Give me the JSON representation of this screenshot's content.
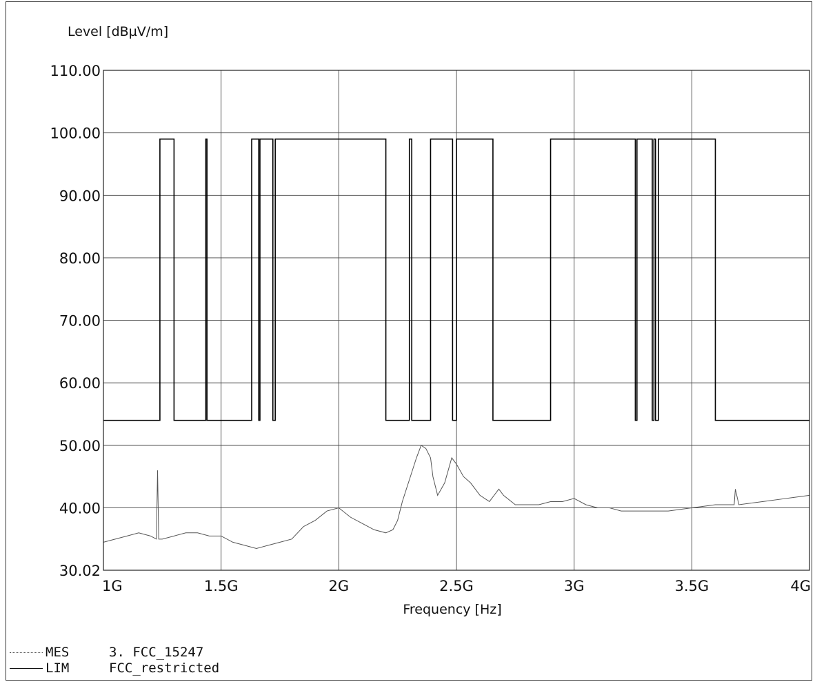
{
  "chart_data": {
    "type": "line",
    "ylabel": "Level [dBµV/m]",
    "xlabel": "Frequency [Hz]",
    "xlim": [
      1000000000,
      4000000000
    ],
    "ylim": [
      30.02,
      110.0
    ],
    "x_ticks": [
      {
        "value": 1000000000,
        "label": "1G"
      },
      {
        "value": 1500000000,
        "label": "1.5G"
      },
      {
        "value": 2000000000,
        "label": "2G"
      },
      {
        "value": 2500000000,
        "label": "2.5G"
      },
      {
        "value": 3000000000,
        "label": "3G"
      },
      {
        "value": 3500000000,
        "label": "3.5G"
      },
      {
        "value": 4000000000,
        "label": "4G"
      }
    ],
    "y_ticks": [
      {
        "value": 30.02,
        "label": "30.02"
      },
      {
        "value": 40,
        "label": "40.00"
      },
      {
        "value": 50,
        "label": "50.00"
      },
      {
        "value": 60,
        "label": "60.00"
      },
      {
        "value": 70,
        "label": "70.00"
      },
      {
        "value": 80,
        "label": "80.00"
      },
      {
        "value": 90,
        "label": "90.00"
      },
      {
        "value": 100,
        "label": "100.00"
      },
      {
        "value": 110,
        "label": "110.00"
      }
    ],
    "grid": true,
    "series": [
      {
        "name": "FCC_restricted",
        "code": "LIM",
        "style": "solid",
        "color": "#000000",
        "x": [
          1000000000,
          1240000000,
          1240000000,
          1300000000,
          1300000000,
          1435000000,
          1435000000,
          1440000000,
          1440000000,
          1630000000,
          1630000000,
          1660000000,
          1660000000,
          1665000000,
          1665000000,
          1720000000,
          1720000000,
          1730000000,
          1730000000,
          2200000000,
          2200000000,
          2300000000,
          2300000000,
          2310000000,
          2310000000,
          2390000000,
          2390000000,
          2483500000,
          2483500000,
          2500000000,
          2500000000,
          2655000000,
          2655000000,
          2900000000,
          2900000000,
          3260000000,
          3260000000,
          3267000000,
          3267000000,
          3332000000,
          3332000000,
          3339000000,
          3339000000,
          3345800000,
          3345800000,
          3358000000,
          3358000000,
          3600000000,
          3600000000,
          4000000000
        ],
        "y": [
          54,
          54,
          99,
          99,
          54,
          54,
          99,
          99,
          54,
          54,
          99,
          99,
          54,
          54,
          99,
          99,
          54,
          54,
          99,
          99,
          54,
          54,
          99,
          99,
          54,
          54,
          99,
          99,
          54,
          54,
          99,
          99,
          54,
          54,
          99,
          99,
          54,
          54,
          99,
          99,
          54,
          54,
          99,
          99,
          54,
          54,
          99,
          99,
          54,
          54
        ]
      },
      {
        "name": "3. FCC_15247",
        "code": "MES",
        "style": "thin",
        "color": "#555555",
        "x": [
          1000000000,
          1050000000,
          1100000000,
          1150000000,
          1200000000,
          1225000000,
          1230000000,
          1235000000,
          1250000000,
          1300000000,
          1350000000,
          1400000000,
          1450000000,
          1500000000,
          1550000000,
          1600000000,
          1650000000,
          1700000000,
          1750000000,
          1800000000,
          1850000000,
          1900000000,
          1950000000,
          2000000000,
          2050000000,
          2100000000,
          2150000000,
          2200000000,
          2230000000,
          2250000000,
          2270000000,
          2300000000,
          2330000000,
          2350000000,
          2370000000,
          2390000000,
          2400000000,
          2420000000,
          2450000000,
          2480000000,
          2500000000,
          2530000000,
          2560000000,
          2600000000,
          2640000000,
          2680000000,
          2700000000,
          2750000000,
          2800000000,
          2850000000,
          2900000000,
          2950000000,
          3000000000,
          3050000000,
          3100000000,
          3150000000,
          3200000000,
          3300000000,
          3400000000,
          3500000000,
          3600000000,
          3650000000,
          3680000000,
          3685000000,
          3700000000,
          3800000000,
          3900000000,
          4000000000
        ],
        "y": [
          34.5,
          35,
          35.5,
          36,
          35.5,
          35,
          46,
          35,
          35,
          35.5,
          36,
          36,
          35.5,
          35.5,
          34.5,
          34,
          33.5,
          34,
          34.5,
          35,
          37,
          38,
          39.5,
          40,
          38.5,
          37.5,
          36.5,
          36,
          36.5,
          38,
          41,
          44.5,
          48,
          50,
          49.5,
          48,
          45,
          42,
          44,
          48,
          47,
          45,
          44,
          42,
          41,
          43,
          42,
          40.5,
          40.5,
          40.5,
          41,
          41,
          41.5,
          40.5,
          40,
          40,
          39.5,
          39.5,
          39.5,
          40,
          40.5,
          40.5,
          40.5,
          43,
          40.5,
          41,
          41.5,
          42
        ]
      }
    ]
  },
  "legend": [
    {
      "code": "MES",
      "text": "3. FCC_15247",
      "style": "dotted"
    },
    {
      "code": "LIM",
      "text": "FCC_restricted",
      "style": "solid"
    }
  ]
}
